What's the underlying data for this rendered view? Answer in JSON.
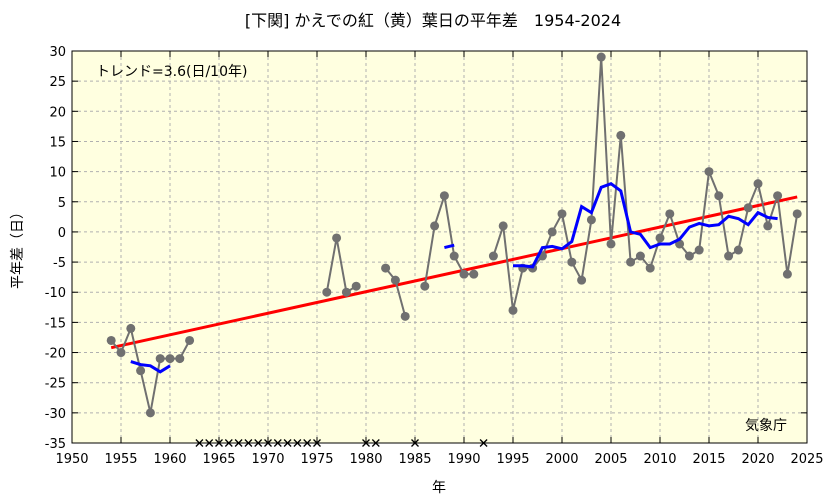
{
  "chart_data": {
    "type": "line",
    "title": "[下関] かえでの紅（黄）葉日の平年差　1954-2024",
    "xlabel": "年",
    "ylabel": "平年差（日）",
    "xlim": [
      1950,
      2025
    ],
    "ylim": [
      -35,
      30
    ],
    "x_ticks": [
      1950,
      1955,
      1960,
      1965,
      1970,
      1975,
      1980,
      1985,
      1990,
      1995,
      2000,
      2005,
      2010,
      2015,
      2020,
      2025
    ],
    "y_ticks": [
      30,
      25,
      20,
      15,
      10,
      5,
      0,
      -5,
      -10,
      -15,
      -20,
      -25,
      -30,
      -35
    ],
    "grid": true,
    "trend_label": "トレンド=3.6(日/10年)",
    "source_label": "気象庁",
    "colors": {
      "background": "#ffffe0",
      "observed": "#707070",
      "moving_avg": "#0000ff",
      "trend": "#ff0000",
      "grid": "#b0b0b0"
    },
    "series": [
      {
        "role": "observed",
        "points": [
          [
            1954,
            -18
          ],
          [
            1955,
            -20
          ],
          [
            1956,
            -16
          ],
          [
            1957,
            -23
          ],
          [
            1958,
            -30
          ],
          [
            1959,
            -21
          ],
          [
            1960,
            -21
          ],
          [
            1961,
            -21
          ],
          [
            1962,
            -18
          ],
          [
            1976,
            -10
          ],
          [
            1977,
            -1
          ],
          [
            1978,
            -10
          ],
          [
            1979,
            -9
          ],
          [
            1982,
            -6
          ],
          [
            1983,
            -8
          ],
          [
            1984,
            -14
          ],
          [
            1986,
            -9
          ],
          [
            1987,
            1
          ],
          [
            1988,
            6
          ],
          [
            1989,
            -4
          ],
          [
            1990,
            -7
          ],
          [
            1991,
            -7
          ],
          [
            1993,
            -4
          ],
          [
            1994,
            1
          ],
          [
            1995,
            -13
          ],
          [
            1996,
            -6
          ],
          [
            1997,
            -6
          ],
          [
            1998,
            -4
          ],
          [
            1999,
            0
          ],
          [
            2000,
            3
          ],
          [
            2001,
            -5
          ],
          [
            2002,
            -8
          ],
          [
            2003,
            2
          ],
          [
            2004,
            29
          ],
          [
            2005,
            -2
          ],
          [
            2006,
            16
          ],
          [
            2007,
            -5
          ],
          [
            2008,
            -4
          ],
          [
            2009,
            -6
          ],
          [
            2010,
            -1
          ],
          [
            2011,
            3
          ],
          [
            2012,
            -2
          ],
          [
            2013,
            -4
          ],
          [
            2014,
            -3
          ],
          [
            2015,
            10
          ],
          [
            2016,
            6
          ],
          [
            2017,
            -4
          ],
          [
            2018,
            -3
          ],
          [
            2019,
            4
          ],
          [
            2020,
            8
          ],
          [
            2021,
            1
          ],
          [
            2022,
            6
          ],
          [
            2023,
            -7
          ],
          [
            2024,
            3
          ]
        ]
      },
      {
        "role": "moving_avg",
        "segments": [
          [
            [
              1956,
              -21.5
            ],
            [
              1957,
              -22
            ],
            [
              1958,
              -22.2
            ],
            [
              1959,
              -23.2
            ],
            [
              1960,
              -22.2
            ]
          ],
          [
            [
              1988,
              -2.6
            ],
            [
              1989,
              -2.2
            ]
          ],
          [
            [
              1995,
              -5.6
            ],
            [
              1996,
              -5.6
            ],
            [
              1997,
              -5.8
            ],
            [
              1998,
              -2.6
            ],
            [
              1999,
              -2.4
            ],
            [
              2000,
              -2.8
            ],
            [
              2001,
              -1.6
            ],
            [
              2002,
              4.2
            ],
            [
              2003,
              3.2
            ],
            [
              2004,
              7.4
            ],
            [
              2005,
              8
            ],
            [
              2006,
              6.8
            ],
            [
              2007,
              0
            ],
            [
              2008,
              -0.4
            ],
            [
              2009,
              -2.6
            ],
            [
              2010,
              -2
            ],
            [
              2011,
              -2
            ],
            [
              2012,
              -1.2
            ],
            [
              2013,
              0.8
            ],
            [
              2014,
              1.4
            ],
            [
              2015,
              1
            ],
            [
              2016,
              1.2
            ],
            [
              2017,
              2.6
            ],
            [
              2018,
              2.2
            ],
            [
              2019,
              1.2
            ],
            [
              2020,
              3.2
            ],
            [
              2021,
              2.4
            ],
            [
              2022,
              2.2
            ]
          ]
        ]
      },
      {
        "role": "trend",
        "points": [
          [
            1954,
            -19.2
          ],
          [
            2024,
            5.8
          ]
        ]
      },
      {
        "role": "missing",
        "x": [
          1963,
          1964,
          1965,
          1966,
          1967,
          1968,
          1969,
          1970,
          1971,
          1972,
          1973,
          1974,
          1975,
          1980,
          1981,
          1985,
          1992
        ],
        "y": -35
      }
    ]
  }
}
